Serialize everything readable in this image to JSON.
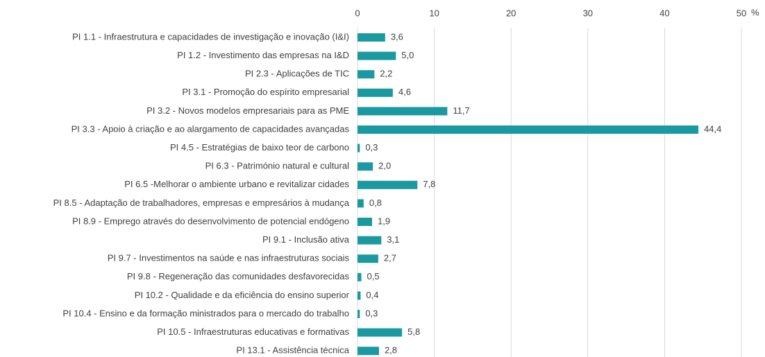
{
  "chart_data": {
    "type": "bar",
    "orientation": "horizontal",
    "categories": [
      "PI 1.1 - Infraestrutura e capacidades de investigação e inovação (I&I)",
      "PI 1.2 - Investimento das empresas na I&D",
      "PI 2.3 - Aplicações de TIC",
      "PI 3.1 - Promoção do espírito empresarial",
      "PI 3.2 - Novos modelos empresariais para as PME",
      "PI 3.3 - Apoio à criação e ao alargamento de capacidades avançadas",
      "PI 4.5 - Estratégias de baixo teor de carbono",
      "PI 6.3 - Património natural e cultural",
      "PI 6.5 -Melhorar o ambiente urbano e revitalizar cidades",
      "PI 8.5 - Adaptação de trabalhadores, empresas e empresários à mudança",
      "PI 8.9 -  Emprego através do desenvolvimento de potencial endógeno",
      "PI 9.1 - Inclusão ativa",
      "PI 9.7 - Investimentos na saúde e nas infraestruturas sociais",
      "PI 9.8 - Regeneração das comunidades desfavorecidas",
      "PI 10.2 - Qualidade e da eficiência do ensino superior",
      "PI 10.4 - Ensino e da formação ministrados para o mercado do trabalho",
      "PI 10.5 - Infraestruturas educativas e formativas",
      "PI 13.1 - Assistência técnica"
    ],
    "values": [
      3.6,
      5.0,
      2.2,
      4.6,
      11.7,
      44.4,
      0.3,
      2.0,
      7.8,
      0.8,
      1.9,
      3.1,
      2.7,
      0.5,
      0.4,
      0.3,
      5.8,
      2.8
    ],
    "value_labels": [
      "3,6",
      "5,0",
      "2,2",
      "4,6",
      "11,7",
      "44,4",
      "0,3",
      "2,0",
      "7,8",
      "0,8",
      "1,9",
      "3,1",
      "2,7",
      "0,5",
      "0,4",
      "0,3",
      "5,8",
      "2,8"
    ],
    "color": "#1a9aa0",
    "x_unit": "%",
    "xlim": [
      0,
      50
    ],
    "xticks": [
      0,
      10,
      20,
      30,
      40,
      50
    ],
    "grid": true
  }
}
